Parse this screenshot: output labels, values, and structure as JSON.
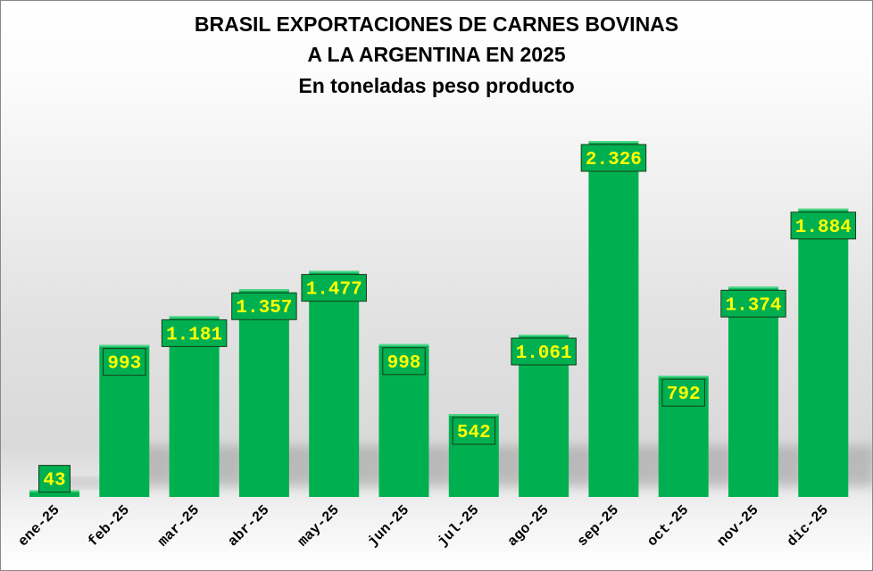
{
  "chart_data": {
    "type": "bar",
    "title": "BRASIL EXPORTACIONES DE CARNES BOVINAS",
    "title_line2": "A LA ARGENTINA EN 2025",
    "subtitle": "En toneladas peso producto",
    "xlabel": "",
    "ylabel": "",
    "categories": [
      "ene-25",
      "feb-25",
      "mar-25",
      "abr-25",
      "may-25",
      "jun-25",
      "jul-25",
      "ago-25",
      "sep-25",
      "oct-25",
      "nov-25",
      "dic-25"
    ],
    "values": [
      43,
      993,
      1181,
      1357,
      1477,
      998,
      542,
      1061,
      2326,
      792,
      1374,
      1884
    ],
    "data_labels": [
      "43",
      "993",
      "1.181",
      "1.357",
      "1.477",
      "998",
      "542",
      "1.061",
      "2.326",
      "792",
      "1.374",
      "1.884"
    ],
    "ylim": [
      0,
      2326
    ],
    "grid": false,
    "legend": "none",
    "colors": {
      "bar": "#00b050",
      "label_text": "#ffff00",
      "label_border": "#1a3a1a"
    }
  }
}
